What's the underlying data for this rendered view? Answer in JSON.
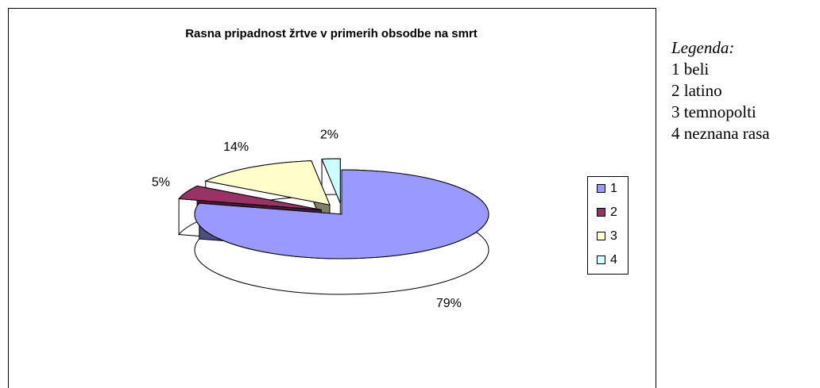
{
  "chart_data": {
    "type": "pie",
    "title": "Rasna pripadnost žrtve v primerih obsodbe na smrt",
    "categories": [
      "1",
      "2",
      "3",
      "4"
    ],
    "values": [
      79,
      5,
      14,
      2
    ],
    "value_labels": [
      "79%",
      "5%",
      "14%",
      "2%"
    ],
    "colors": [
      "#9999ff",
      "#993366",
      "#ffffcc",
      "#ccffff"
    ],
    "legend": "right"
  },
  "legend_note": {
    "title": "Legenda:",
    "items": [
      "1 beli",
      "2 latino",
      "3 temnopolti",
      "4 neznana rasa"
    ]
  }
}
